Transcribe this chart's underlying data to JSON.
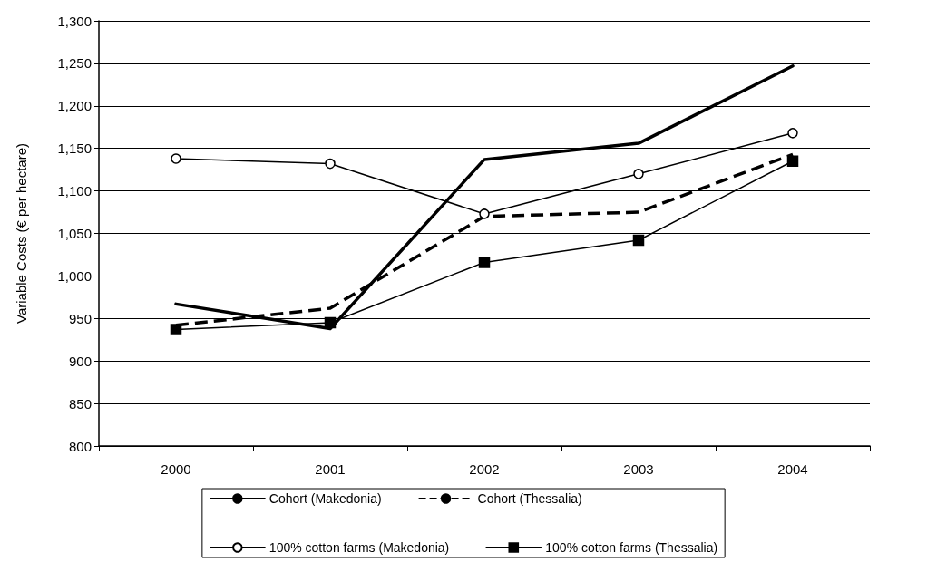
{
  "chart_data": {
    "type": "line",
    "ylabel": "Variable Costs (€ per hectare)",
    "categories": [
      "2000",
      "2001",
      "2002",
      "2003",
      "2004"
    ],
    "ylim": [
      800,
      1300
    ],
    "yticks": [
      {
        "value": 800,
        "label": "800"
      },
      {
        "value": 850,
        "label": "850"
      },
      {
        "value": 900,
        "label": "900"
      },
      {
        "value": 950,
        "label": "950"
      },
      {
        "value": 1000,
        "label": "1,000"
      },
      {
        "value": 1050,
        "label": "1,050"
      },
      {
        "value": 1100,
        "label": "1,100"
      },
      {
        "value": 1150,
        "label": "1,150"
      },
      {
        "value": 1200,
        "label": "1,200"
      },
      {
        "value": 1250,
        "label": "1,250"
      },
      {
        "value": 1300,
        "label": "1,300"
      }
    ],
    "grid": "y",
    "legend": "bottom",
    "series": [
      {
        "name": "Cohort (Makedonia)",
        "color": "#000000",
        "line_style": "solid",
        "marker": "none",
        "values": [
          967,
          938,
          1137,
          1156,
          1247
        ]
      },
      {
        "name": "Cohort (Thessalia)",
        "color": "#000000",
        "line_style": "dashed",
        "marker": "none",
        "values": [
          942,
          962,
          1070,
          1075,
          1143
        ]
      },
      {
        "name": "100% cotton farms (Makedonia)",
        "color": "#000000",
        "line_style": "solid",
        "marker": "circle",
        "values": [
          1138,
          1132,
          1073,
          1120,
          1168
        ]
      },
      {
        "name": "100% cotton farms (Thessalia)",
        "color": "#000000",
        "line_style": "solid",
        "marker": "square",
        "values": [
          937,
          945,
          1016,
          1042,
          1135
        ]
      }
    ]
  }
}
